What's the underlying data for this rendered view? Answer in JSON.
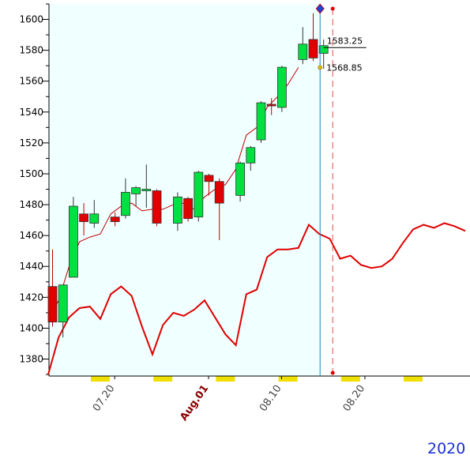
{
  "colors": {
    "up": "#00e040",
    "down": "#e00000",
    "ma_line": "#c00000",
    "osc_line": "#e00000",
    "plot_bg": "#f0ffff",
    "cursor_line": "#1e7fc8",
    "future_line": "#e05050",
    "weekend_marker": "#f0e000",
    "year_text": "#1a2fd6"
  },
  "year_label": "2020",
  "chart_data": {
    "type": "candlestick",
    "y_ticks": [
      "1380",
      "1400",
      "1420",
      "1440",
      "1460",
      "1480",
      "1500",
      "1520",
      "1540",
      "1560",
      "1580",
      "1600"
    ],
    "ylim": [
      1369,
      1610
    ],
    "x_labels": [
      {
        "text": "07.20",
        "index": 6,
        "emphasis": false
      },
      {
        "text": "Aug.01",
        "index": 15,
        "emphasis": true
      },
      {
        "text": "08.10",
        "index": 22,
        "emphasis": false
      },
      {
        "text": "08.20",
        "index": 30,
        "emphasis": false
      }
    ],
    "candles": [
      {
        "o": 1427,
        "h": 1451,
        "l": 1401,
        "c": 1404
      },
      {
        "o": 1404,
        "h": 1428,
        "l": 1394,
        "c": 1428
      },
      {
        "o": 1433,
        "h": 1485,
        "l": 1433,
        "c": 1479
      },
      {
        "o": 1474,
        "h": 1481,
        "l": 1460,
        "c": 1469
      },
      {
        "o": 1468,
        "h": 1483,
        "l": 1465,
        "c": 1474
      },
      {
        "o": 1472,
        "h": 1475,
        "l": 1466,
        "c": 1469
      },
      {
        "o": 1473,
        "h": 1497,
        "l": 1471,
        "c": 1488
      },
      {
        "o": 1487,
        "h": 1492,
        "l": 1479,
        "c": 1491
      },
      {
        "o": 1490,
        "h": 1506,
        "l": 1478,
        "c": 1490
      },
      {
        "o": 1489,
        "h": 1490,
        "l": 1466,
        "c": 1468
      },
      {
        "o": 1468,
        "h": 1488,
        "l": 1463,
        "c": 1485
      },
      {
        "o": 1484,
        "h": 1485,
        "l": 1469,
        "c": 1471
      },
      {
        "o": 1472,
        "h": 1502,
        "l": 1469,
        "c": 1501
      },
      {
        "o": 1499,
        "h": 1500,
        "l": 1486,
        "c": 1495
      },
      {
        "o": 1495,
        "h": 1497,
        "l": 1457,
        "c": 1481
      },
      {
        "o": 1486,
        "h": 1508,
        "l": 1482,
        "c": 1507
      },
      {
        "o": 1507,
        "h": 1518,
        "l": 1502,
        "c": 1517
      },
      {
        "o": 1522,
        "h": 1547,
        "l": 1520,
        "c": 1546
      },
      {
        "o": 1545,
        "h": 1549,
        "l": 1538,
        "c": 1544
      },
      {
        "o": 1543,
        "h": 1570,
        "l": 1540,
        "c": 1569
      },
      {
        "o": 1574,
        "h": 1595,
        "l": 1571,
        "c": 1584
      },
      {
        "o": 1587,
        "h": 1604,
        "l": 1573,
        "c": 1575
      },
      {
        "o": 1578,
        "h": 1587,
        "l": 1568,
        "c": 1583
      }
    ],
    "candle_slots": [
      0,
      1,
      2,
      3,
      4,
      6,
      7,
      8,
      9,
      10,
      12,
      13,
      14,
      15,
      16,
      18,
      19,
      20,
      21,
      22,
      24,
      25,
      26
    ],
    "weekend_slots": [
      5,
      11,
      17,
      23,
      29,
      35
    ],
    "moving_average": [
      1404,
      1418,
      1440,
      1456,
      1459,
      1461,
      1474,
      1479,
      1481,
      1476,
      1477,
      1477,
      1480,
      1481,
      1477,
      1485,
      1490,
      1493,
      1503,
      1525,
      1530,
      1543,
      1550,
      1558,
      1568.85
    ],
    "oscillator": [
      1370,
      1394,
      1407,
      1413,
      1414,
      1406,
      1422,
      1427,
      1421,
      1401,
      1383,
      1402,
      1410,
      1408,
      1412,
      1418,
      1407,
      1396,
      1389,
      1422,
      1425,
      1446,
      1451,
      1451,
      1452,
      1467,
      1461,
      1458,
      1445,
      1447,
      1441,
      1439,
      1440,
      1445,
      1455,
      1464,
      1467,
      1465,
      1468,
      1466,
      1463
    ],
    "annotations": [
      {
        "text": "1583.25",
        "value": 1583.25
      },
      {
        "text": "1568.85",
        "value": 1568.85
      }
    ],
    "grid": false
  }
}
